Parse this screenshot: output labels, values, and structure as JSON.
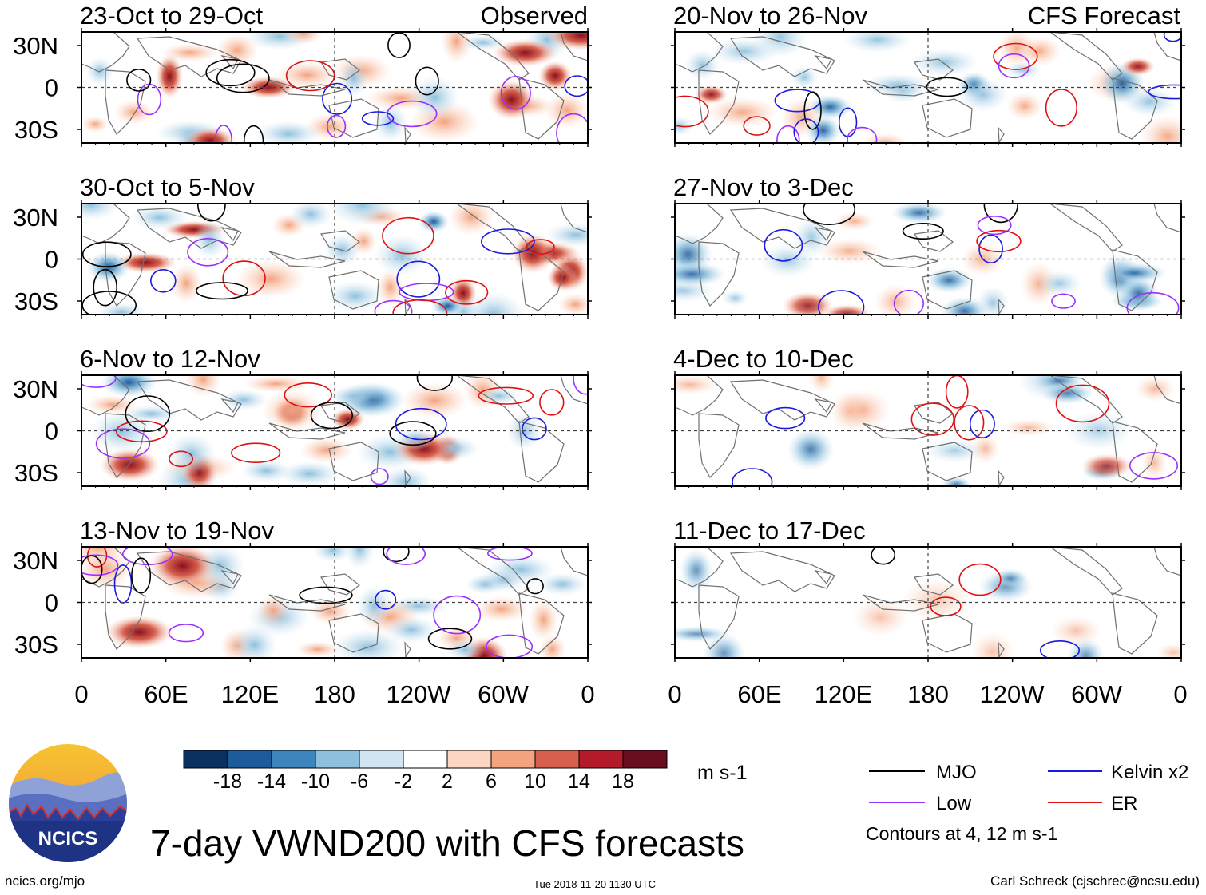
{
  "main_title": "7-day VWND200 with CFS forecasts",
  "units": "m s-1",
  "labels": {
    "observed": "Observed",
    "forecast": "CFS Forecast"
  },
  "lat_ticks": [
    "30N",
    "0",
    "30S"
  ],
  "lon_ticks": [
    "0",
    "60E",
    "120E",
    "180",
    "120W",
    "60W",
    "0"
  ],
  "panels": {
    "observed": [
      "23-Oct to 29-Oct",
      "30-Oct to 5-Nov",
      "6-Nov to 12-Nov",
      "13-Nov to 19-Nov"
    ],
    "forecast": [
      "20-Nov to 26-Nov",
      "27-Nov to 3-Dec",
      "4-Dec to 10-Dec",
      "11-Dec to 17-Dec"
    ]
  },
  "colorbar": {
    "ticks": [
      "-18",
      "-14",
      "-10",
      "-6",
      "-2",
      "2",
      "6",
      "10",
      "14",
      "18"
    ],
    "colors": [
      "#0a3060",
      "#1e5b9a",
      "#3d85bc",
      "#8ec0de",
      "#d2e6f2",
      "#ffffff",
      "#fcd6c2",
      "#f3a37f",
      "#d6604d",
      "#b31b2b",
      "#670d1e"
    ]
  },
  "legend": {
    "mjo": "MJO",
    "kelvin": "Kelvin x2",
    "low": "Low",
    "er": "ER",
    "note": "Contours at 4, 12 m s-1"
  },
  "legend_colors": {
    "mjo": "#000000",
    "kelvin": "#1a1ae0",
    "low": "#9b30ff",
    "er": "#e01010"
  },
  "logo_text": "NCICS",
  "footer": {
    "left": "ncics.org/mjo",
    "center": "Tue 2018-11-20 1130 UTC",
    "right": "Carl Schreck (cjschrec@ncsu.edu)"
  }
}
